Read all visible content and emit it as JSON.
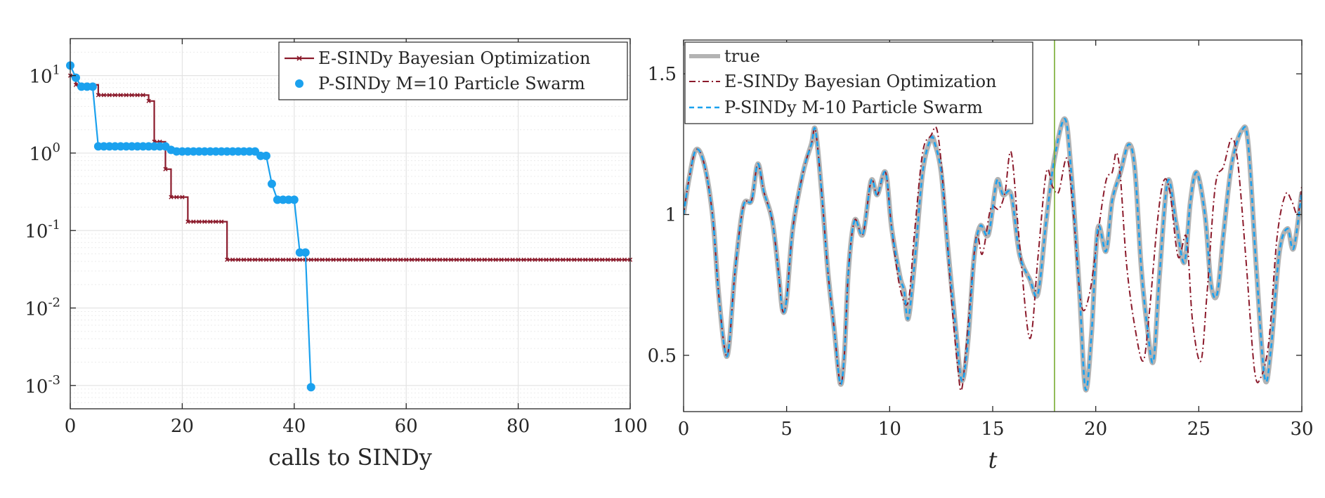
{
  "chart_data": [
    {
      "type": "line",
      "yscale": "log",
      "title": "",
      "xlabel": "calls to SINDy",
      "ylabel": "",
      "xlim": [
        0,
        100
      ],
      "ylim": [
        0.0005,
        30
      ],
      "grid": true,
      "legend_position": "top-right",
      "x_ticks": [
        0,
        20,
        40,
        60,
        80,
        100
      ],
      "x_tick_labels": [
        "0",
        "20",
        "40",
        "60",
        "80",
        "100"
      ],
      "y_ticks": [
        0.001,
        0.01,
        0.1,
        1,
        10
      ],
      "y_tick_labels": [
        {
          "base": "10",
          "exp": "-3"
        },
        {
          "base": "10",
          "exp": "-2"
        },
        {
          "base": "10",
          "exp": "-1"
        },
        {
          "base": "10",
          "exp": "0"
        },
        {
          "base": "10",
          "exp": "1"
        }
      ],
      "series": [
        {
          "name": "E-SINDy Bayesian Optimization",
          "color": "#8b1a2b",
          "marker": "x",
          "step": true,
          "points": [
            [
              0,
              10
            ],
            [
              1,
              7.6
            ],
            [
              5,
              5.6
            ],
            [
              14,
              4.7
            ],
            [
              15,
              1.4
            ],
            [
              17,
              0.62
            ],
            [
              18,
              0.27
            ],
            [
              21,
              0.13
            ],
            [
              27,
              0.13
            ],
            [
              28,
              0.042
            ],
            [
              100,
              0.042
            ]
          ]
        },
        {
          "name": "P-SINDy M=10 Particle Swarm",
          "color": "#1ba1ee",
          "marker": "o",
          "points": [
            [
              0,
              13.5
            ],
            [
              1,
              9.4
            ],
            [
              2,
              7.2
            ],
            [
              3,
              7.2
            ],
            [
              4,
              7.2
            ],
            [
              5,
              1.22
            ],
            [
              6,
              1.22
            ],
            [
              7,
              1.22
            ],
            [
              8,
              1.22
            ],
            [
              9,
              1.22
            ],
            [
              10,
              1.22
            ],
            [
              11,
              1.22
            ],
            [
              12,
              1.22
            ],
            [
              13,
              1.22
            ],
            [
              14,
              1.22
            ],
            [
              15,
              1.22
            ],
            [
              16,
              1.22
            ],
            [
              17,
              1.22
            ],
            [
              18,
              1.1
            ],
            [
              19,
              1.05
            ],
            [
              20,
              1.05
            ],
            [
              21,
              1.05
            ],
            [
              22,
              1.05
            ],
            [
              23,
              1.05
            ],
            [
              24,
              1.05
            ],
            [
              25,
              1.05
            ],
            [
              26,
              1.05
            ],
            [
              27,
              1.05
            ],
            [
              28,
              1.05
            ],
            [
              29,
              1.05
            ],
            [
              30,
              1.05
            ],
            [
              31,
              1.05
            ],
            [
              32,
              1.05
            ],
            [
              33,
              1.05
            ],
            [
              34,
              0.92
            ],
            [
              35,
              0.92
            ],
            [
              36,
              0.4
            ],
            [
              37,
              0.25
            ],
            [
              38,
              0.25
            ],
            [
              39,
              0.25
            ],
            [
              40,
              0.25
            ],
            [
              41,
              0.052
            ],
            [
              42,
              0.052
            ],
            [
              43,
              0.00095
            ]
          ]
        }
      ]
    },
    {
      "type": "line",
      "title": "",
      "xlabel": "t",
      "ylabel": "",
      "xlim": [
        0,
        30
      ],
      "ylim": [
        0.3,
        1.62
      ],
      "grid": false,
      "legend_position": "top-left",
      "x_ticks": [
        0,
        5,
        10,
        15,
        20,
        25,
        30
      ],
      "x_tick_labels": [
        "0",
        "5",
        "10",
        "15",
        "20",
        "25",
        "30"
      ],
      "y_ticks": [
        0.5,
        1,
        1.5
      ],
      "y_tick_labels": [
        "0.5",
        "1",
        "1.5"
      ],
      "vertical_marker": {
        "x": 18,
        "color": "#77ac30"
      },
      "series": [
        {
          "name": "true",
          "color": "#b3b3b3",
          "style": "solid-thick",
          "points": [
            [
              0,
              1.0
            ],
            [
              0.25,
              1.12
            ],
            [
              0.6,
              1.23
            ],
            [
              1.0,
              1.18
            ],
            [
              1.4,
              1.0
            ],
            [
              1.7,
              0.72
            ],
            [
              2.0,
              0.52
            ],
            [
              2.2,
              0.53
            ],
            [
              2.5,
              0.8
            ],
            [
              2.9,
              1.03
            ],
            [
              3.3,
              1.05
            ],
            [
              3.6,
              1.18
            ],
            [
              3.9,
              1.08
            ],
            [
              4.3,
              0.98
            ],
            [
              4.6,
              0.8
            ],
            [
              4.8,
              0.66
            ],
            [
              5.0,
              0.7
            ],
            [
              5.3,
              0.95
            ],
            [
              5.8,
              1.15
            ],
            [
              6.2,
              1.25
            ],
            [
              6.4,
              1.3
            ],
            [
              6.7,
              1.08
            ],
            [
              7.0,
              0.8
            ],
            [
              7.3,
              0.6
            ],
            [
              7.6,
              0.4
            ],
            [
              7.8,
              0.5
            ],
            [
              8.0,
              0.8
            ],
            [
              8.3,
              0.98
            ],
            [
              8.7,
              0.93
            ],
            [
              9.1,
              1.12
            ],
            [
              9.4,
              1.07
            ],
            [
              9.8,
              1.15
            ],
            [
              10.1,
              0.95
            ],
            [
              10.5,
              0.78
            ],
            [
              10.7,
              0.73
            ],
            [
              10.9,
              0.63
            ],
            [
              11.2,
              0.82
            ],
            [
              11.6,
              1.15
            ],
            [
              12.0,
              1.27
            ],
            [
              12.2,
              1.25
            ],
            [
              12.5,
              1.15
            ],
            [
              12.8,
              0.9
            ],
            [
              13.2,
              0.6
            ],
            [
              13.5,
              0.41
            ],
            [
              13.8,
              0.55
            ],
            [
              14.1,
              0.85
            ],
            [
              14.4,
              0.96
            ],
            [
              14.8,
              0.93
            ],
            [
              15.2,
              1.12
            ],
            [
              15.5,
              1.07
            ],
            [
              15.9,
              1.07
            ],
            [
              16.3,
              0.86
            ],
            [
              16.8,
              0.77
            ],
            [
              17.2,
              0.72
            ],
            [
              17.6,
              0.98
            ],
            [
              18.0,
              1.2
            ],
            [
              18.5,
              1.34
            ],
            [
              18.8,
              1.16
            ],
            [
              19.2,
              0.74
            ],
            [
              19.5,
              0.38
            ],
            [
              19.8,
              0.58
            ],
            [
              20.1,
              0.95
            ],
            [
              20.5,
              0.87
            ],
            [
              20.8,
              1.05
            ],
            [
              21.2,
              1.15
            ],
            [
              21.6,
              1.25
            ],
            [
              21.9,
              1.16
            ],
            [
              22.2,
              0.82
            ],
            [
              22.5,
              0.6
            ],
            [
              22.8,
              0.48
            ],
            [
              23.1,
              0.79
            ],
            [
              23.5,
              1.12
            ],
            [
              23.9,
              0.97
            ],
            [
              24.3,
              0.83
            ],
            [
              24.6,
              1.05
            ],
            [
              24.9,
              1.15
            ],
            [
              25.3,
              1.0
            ],
            [
              25.6,
              0.75
            ],
            [
              25.9,
              0.72
            ],
            [
              26.2,
              0.93
            ],
            [
              26.6,
              1.18
            ],
            [
              27.1,
              1.3
            ],
            [
              27.4,
              1.25
            ],
            [
              27.8,
              0.8
            ],
            [
              28.2,
              0.42
            ],
            [
              28.5,
              0.52
            ],
            [
              28.9,
              0.86
            ],
            [
              29.3,
              0.95
            ],
            [
              29.6,
              0.88
            ],
            [
              30.0,
              1.08
            ]
          ]
        },
        {
          "name": "E-SINDy Bayesian Optimization",
          "color": "#8b1a2b",
          "style": "dash-dot",
          "points": [
            [
              0,
              1.0
            ],
            [
              0.25,
              1.12
            ],
            [
              0.6,
              1.23
            ],
            [
              1.0,
              1.18
            ],
            [
              1.4,
              1.0
            ],
            [
              1.7,
              0.72
            ],
            [
              2.0,
              0.52
            ],
            [
              2.2,
              0.53
            ],
            [
              2.5,
              0.8
            ],
            [
              2.9,
              1.03
            ],
            [
              3.3,
              1.05
            ],
            [
              3.6,
              1.18
            ],
            [
              3.9,
              1.08
            ],
            [
              4.3,
              0.98
            ],
            [
              4.6,
              0.8
            ],
            [
              4.8,
              0.66
            ],
            [
              5.0,
              0.7
            ],
            [
              5.3,
              0.95
            ],
            [
              5.8,
              1.15
            ],
            [
              6.2,
              1.25
            ],
            [
              6.4,
              1.3
            ],
            [
              6.7,
              1.08
            ],
            [
              7.0,
              0.8
            ],
            [
              7.3,
              0.6
            ],
            [
              7.6,
              0.4
            ],
            [
              7.8,
              0.5
            ],
            [
              8.0,
              0.8
            ],
            [
              8.3,
              0.98
            ],
            [
              8.7,
              0.93
            ],
            [
              9.1,
              1.12
            ],
            [
              9.4,
              1.07
            ],
            [
              9.8,
              1.15
            ],
            [
              10.1,
              0.95
            ],
            [
              10.5,
              0.74
            ],
            [
              10.9,
              0.69
            ],
            [
              11.2,
              0.93
            ],
            [
              11.6,
              1.22
            ],
            [
              12.0,
              1.28
            ],
            [
              12.3,
              1.3
            ],
            [
              12.6,
              1.1
            ],
            [
              13.0,
              0.7
            ],
            [
              13.3,
              0.46
            ],
            [
              13.5,
              0.38
            ],
            [
              13.8,
              0.6
            ],
            [
              14.2,
              0.92
            ],
            [
              14.5,
              0.86
            ],
            [
              14.9,
              1.02
            ],
            [
              15.3,
              1.02
            ],
            [
              15.6,
              1.08
            ],
            [
              15.9,
              1.22
            ],
            [
              16.3,
              0.9
            ],
            [
              16.8,
              0.56
            ],
            [
              17.2,
              0.85
            ],
            [
              17.6,
              1.15
            ],
            [
              17.9,
              1.1
            ],
            [
              18.2,
              1.08
            ],
            [
              18.6,
              1.2
            ],
            [
              18.9,
              1.02
            ],
            [
              19.3,
              0.68
            ],
            [
              19.7,
              0.72
            ],
            [
              20.1,
              0.93
            ],
            [
              20.5,
              1.12
            ],
            [
              20.8,
              1.15
            ],
            [
              21.0,
              1.22
            ],
            [
              21.2,
              1.13
            ],
            [
              21.5,
              0.82
            ],
            [
              21.9,
              0.6
            ],
            [
              22.3,
              0.48
            ],
            [
              22.6,
              0.65
            ],
            [
              23.0,
              0.98
            ],
            [
              23.3,
              1.12
            ],
            [
              23.6,
              1.08
            ],
            [
              24.0,
              0.85
            ],
            [
              24.4,
              0.92
            ],
            [
              24.7,
              0.62
            ],
            [
              25.1,
              0.48
            ],
            [
              25.4,
              0.72
            ],
            [
              25.8,
              1.1
            ],
            [
              26.2,
              1.17
            ],
            [
              26.6,
              1.27
            ],
            [
              26.9,
              1.18
            ],
            [
              27.3,
              0.83
            ],
            [
              27.7,
              0.45
            ],
            [
              28.0,
              0.42
            ],
            [
              28.4,
              0.55
            ],
            [
              28.8,
              0.92
            ],
            [
              29.2,
              1.07
            ],
            [
              29.5,
              1.05
            ],
            [
              29.8,
              1.0
            ],
            [
              30.0,
              1.1
            ]
          ]
        },
        {
          "name": "P-SINDy M-10 Particle Swarm",
          "color": "#1ba1ee",
          "style": "dashed",
          "same_as": "true",
          "points": []
        }
      ]
    }
  ]
}
